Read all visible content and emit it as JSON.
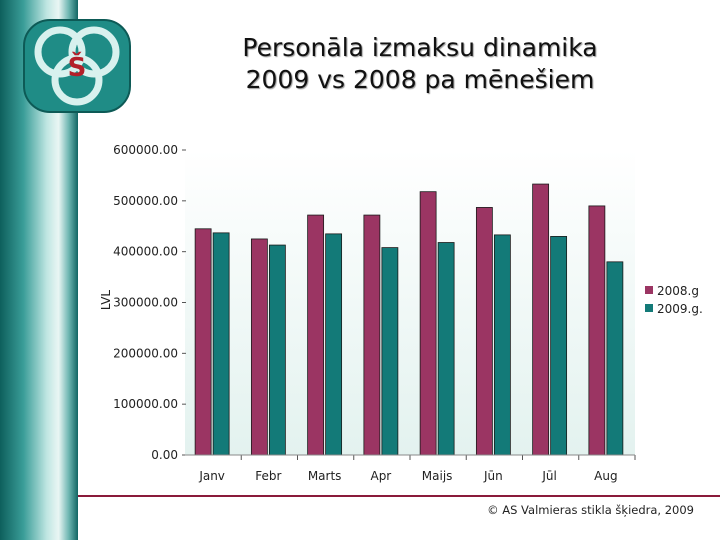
{
  "header": {
    "title_line1": "Personāla izmaksu dinamika",
    "title_line2": "2009 vs 2008 pa mēnešiem",
    "logo_letter": "Š"
  },
  "footer": {
    "copyright": "© AS Valmieras stikla šķiedra, 2009"
  },
  "colors": {
    "series_2008": "#9b3563",
    "series_2009": "#137a78",
    "footer_line": "#8a1a3a"
  },
  "chart_data": {
    "type": "bar",
    "title": "",
    "xlabel": "",
    "ylabel": "LVL",
    "ylim": [
      0,
      600000
    ],
    "yticks": [
      "0.00",
      "100000.00",
      "200000.00",
      "300000.00",
      "400000.00",
      "500000.00",
      "600000.00"
    ],
    "categories": [
      "Janv",
      "Febr",
      "Marts",
      "Apr",
      "Maijs",
      "Jūn",
      "Jūl",
      "Aug"
    ],
    "series": [
      {
        "name": "2008.g",
        "values": [
          445000,
          425000,
          472000,
          472000,
          518000,
          487000,
          533000,
          490000
        ]
      },
      {
        "name": "2009.g.",
        "values": [
          437000,
          413000,
          435000,
          408000,
          418000,
          433000,
          430000,
          380000
        ]
      }
    ],
    "legend_position": "right",
    "grid": false
  }
}
